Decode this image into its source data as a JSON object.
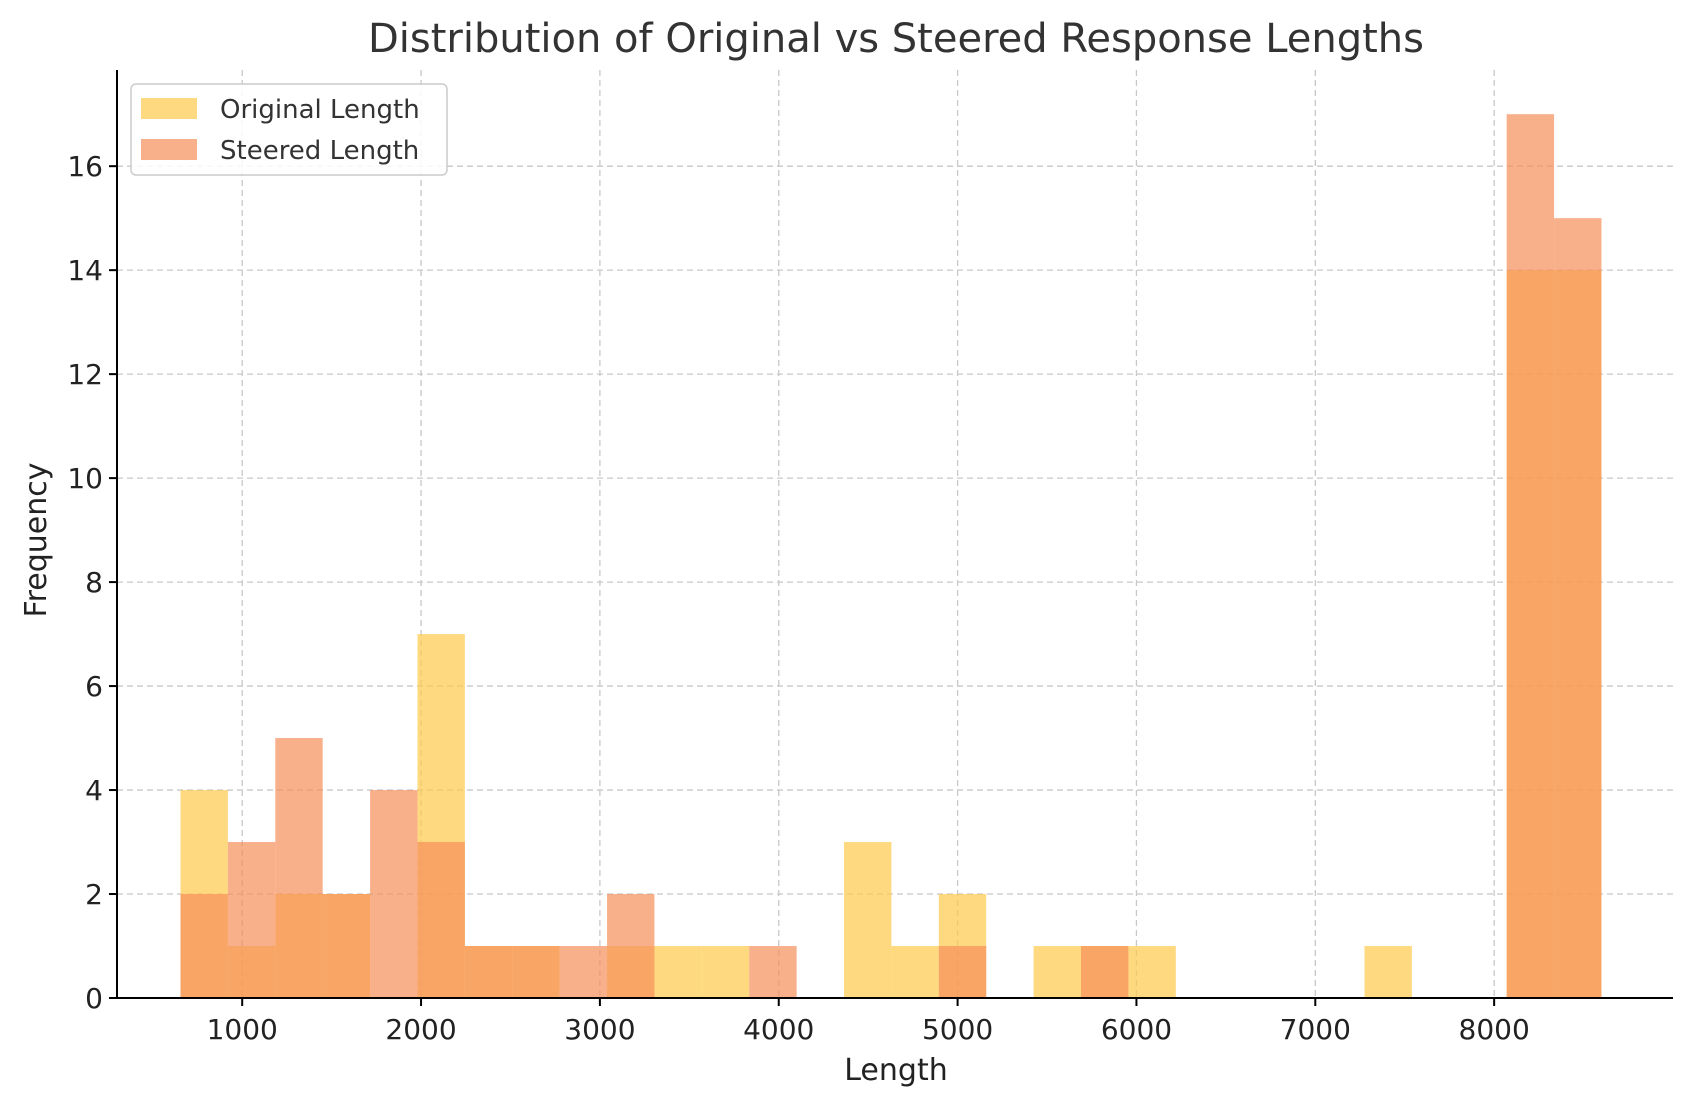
{
  "chart_data": {
    "type": "histogram",
    "title": "Distribution of Original vs Steered Response Lengths",
    "xlabel": "Length",
    "ylabel": "Frequency",
    "xlim": [
      300,
      9000
    ],
    "ylim": [
      0,
      17.85
    ],
    "xticks": [
      1000,
      2000,
      3000,
      4000,
      5000,
      6000,
      7000,
      8000
    ],
    "yticks": [
      0,
      2,
      4,
      6,
      8,
      10,
      12,
      14,
      16
    ],
    "grid": true,
    "legend_position": "top-left",
    "bar_opacity": 0.7,
    "series": [
      {
        "name": "Original Length",
        "color": "#FFC94A",
        "bins": [
          {
            "x0": 655,
            "x1": 920,
            "count": 4
          },
          {
            "x0": 920,
            "x1": 1185,
            "count": 1
          },
          {
            "x0": 1185,
            "x1": 1450,
            "count": 2
          },
          {
            "x0": 1450,
            "x1": 1715,
            "count": 2
          },
          {
            "x0": 1980,
            "x1": 2245,
            "count": 7
          },
          {
            "x0": 2245,
            "x1": 2510,
            "count": 1
          },
          {
            "x0": 2510,
            "x1": 2775,
            "count": 1
          },
          {
            "x0": 3040,
            "x1": 3305,
            "count": 1
          },
          {
            "x0": 3305,
            "x1": 3570,
            "count": 1
          },
          {
            "x0": 3570,
            "x1": 3835,
            "count": 1
          },
          {
            "x0": 4365,
            "x1": 4630,
            "count": 3
          },
          {
            "x0": 4630,
            "x1": 4895,
            "count": 1
          },
          {
            "x0": 4895,
            "x1": 5160,
            "count": 2
          },
          {
            "x0": 5425,
            "x1": 5690,
            "count": 1
          },
          {
            "x0": 5690,
            "x1": 5955,
            "count": 1
          },
          {
            "x0": 5955,
            "x1": 6220,
            "count": 1
          },
          {
            "x0": 7275,
            "x1": 7540,
            "count": 1
          },
          {
            "x0": 8070,
            "x1": 8335,
            "count": 14
          },
          {
            "x0": 8335,
            "x1": 8600,
            "count": 14
          }
        ]
      },
      {
        "name": "Steered Length",
        "color": "#F58E5A",
        "bins": [
          {
            "x0": 655,
            "x1": 920,
            "count": 2
          },
          {
            "x0": 920,
            "x1": 1185,
            "count": 3
          },
          {
            "x0": 1185,
            "x1": 1450,
            "count": 5
          },
          {
            "x0": 1450,
            "x1": 1715,
            "count": 2
          },
          {
            "x0": 1715,
            "x1": 1980,
            "count": 4
          },
          {
            "x0": 1980,
            "x1": 2245,
            "count": 3
          },
          {
            "x0": 2245,
            "x1": 2510,
            "count": 1
          },
          {
            "x0": 2510,
            "x1": 2775,
            "count": 1
          },
          {
            "x0": 2775,
            "x1": 3040,
            "count": 1
          },
          {
            "x0": 3040,
            "x1": 3305,
            "count": 2
          },
          {
            "x0": 3835,
            "x1": 4100,
            "count": 1
          },
          {
            "x0": 4895,
            "x1": 5160,
            "count": 1
          },
          {
            "x0": 5690,
            "x1": 5955,
            "count": 1
          },
          {
            "x0": 8070,
            "x1": 8335,
            "count": 17
          },
          {
            "x0": 8335,
            "x1": 8600,
            "count": 15
          }
        ]
      }
    ]
  }
}
